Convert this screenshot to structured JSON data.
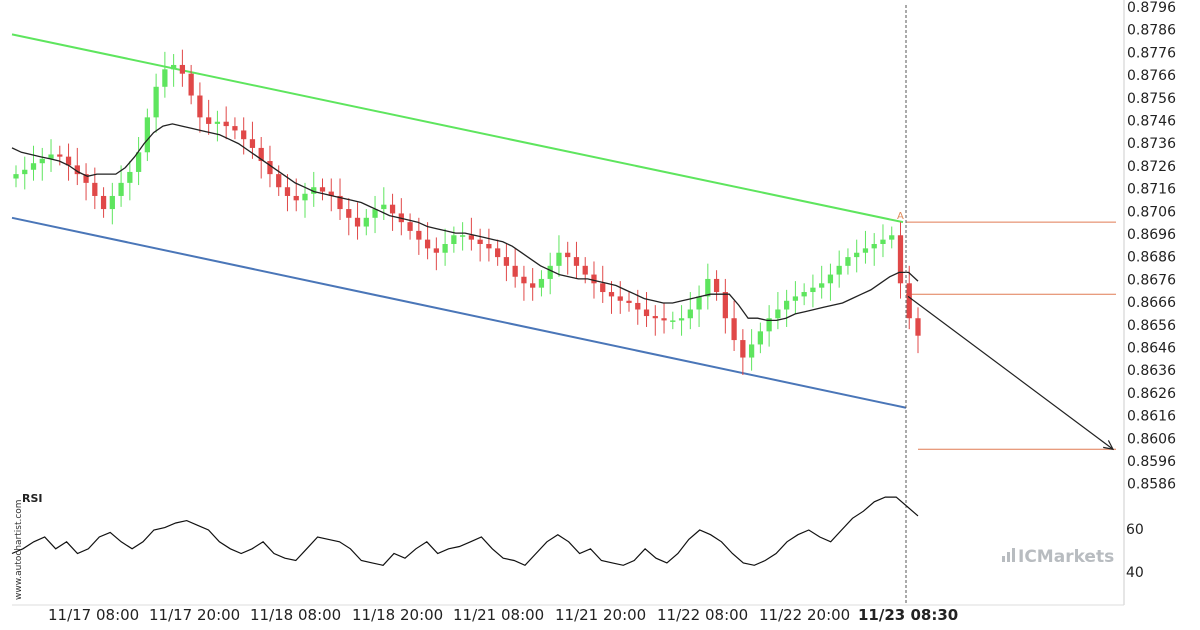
{
  "chart_data": {
    "type": "candlestick",
    "symbol": "",
    "price_axis": {
      "ticks": [
        "0.8796",
        "0.8786",
        "0.8776",
        "0.8766",
        "0.8756",
        "0.8746",
        "0.8736",
        "0.8726",
        "0.8716",
        "0.8706",
        "0.8696",
        "0.8686",
        "0.8676",
        "0.8666",
        "0.8656",
        "0.8646",
        "0.8636",
        "0.8626",
        "0.8616",
        "0.8606",
        "0.8596",
        "0.8586"
      ],
      "range": [
        0.8581,
        0.8799
      ]
    },
    "time_axis": {
      "labels": [
        "11/17 08:00",
        "11/17 20:00",
        "11/18 08:00",
        "11/18 20:00",
        "11/21 08:00",
        "11/21 20:00",
        "11/22 08:00",
        "11/22 20:00",
        "11/23 08:30"
      ],
      "highlight_label": "11/23 08:30"
    },
    "closes": [
      0.8722,
      0.8724,
      0.8727,
      0.8729,
      0.8731,
      0.873,
      0.8726,
      0.8722,
      0.8718,
      0.8712,
      0.8706,
      0.8712,
      0.8718,
      0.8723,
      0.8732,
      0.8748,
      0.8762,
      0.877,
      0.8772,
      0.8768,
      0.8758,
      0.8748,
      0.8745,
      0.8746,
      0.8744,
      0.8742,
      0.8738,
      0.8734,
      0.8728,
      0.8722,
      0.8716,
      0.8712,
      0.871,
      0.8713,
      0.8716,
      0.8714,
      0.8712,
      0.8706,
      0.8702,
      0.8698,
      0.8702,
      0.8706,
      0.8708,
      0.8704,
      0.87,
      0.8696,
      0.8692,
      0.8688,
      0.8686,
      0.869,
      0.8694,
      0.8694,
      0.8692,
      0.869,
      0.8688,
      0.8684,
      0.868,
      0.8675,
      0.8672,
      0.867,
      0.8674,
      0.868,
      0.8686,
      0.8684,
      0.868,
      0.8676,
      0.8672,
      0.8668,
      0.8666,
      0.8664,
      0.8663,
      0.866,
      0.8657,
      0.8656,
      0.8655,
      0.8655,
      0.8656,
      0.866,
      0.8666,
      0.8674,
      0.8668,
      0.8656,
      0.8646,
      0.8638,
      0.8644,
      0.865,
      0.8656,
      0.866,
      0.8664,
      0.8666,
      0.8668,
      0.867,
      0.8672,
      0.8676,
      0.868,
      0.8684,
      0.8686,
      0.8688,
      0.869,
      0.8692,
      0.8694,
      0.8672,
      0.8656,
      0.8648
    ],
    "moving_average": [
      0.8734,
      0.8732,
      0.8731,
      0.873,
      0.8729,
      0.8728,
      0.8726,
      0.8723,
      0.8721,
      0.8722,
      0.8722,
      0.8722,
      0.8725,
      0.873,
      0.8736,
      0.8741,
      0.8744,
      0.8745,
      0.8744,
      0.8743,
      0.8742,
      0.8741,
      0.874,
      0.8738,
      0.8736,
      0.8733,
      0.873,
      0.8727,
      0.8724,
      0.8721,
      0.8718,
      0.8716,
      0.8714,
      0.8713,
      0.8712,
      0.8711,
      0.871,
      0.8709,
      0.8707,
      0.8705,
      0.8703,
      0.8702,
      0.8701,
      0.87,
      0.8698,
      0.8697,
      0.8696,
      0.8695,
      0.8695,
      0.8694,
      0.8693,
      0.8692,
      0.8691,
      0.8689,
      0.8686,
      0.8683,
      0.868,
      0.8678,
      0.8676,
      0.8675,
      0.8674,
      0.8674,
      0.8673,
      0.8672,
      0.8671,
      0.8669,
      0.8667,
      0.8665,
      0.8664,
      0.8663,
      0.8663,
      0.8664,
      0.8665,
      0.8666,
      0.8667,
      0.8667,
      0.8667,
      0.8662,
      0.8656,
      0.8656,
      0.8655,
      0.8655,
      0.8656,
      0.8658,
      0.8659,
      0.866,
      0.8661,
      0.8662,
      0.8663,
      0.8665,
      0.8667,
      0.8669,
      0.8672,
      0.8675,
      0.8677,
      0.8677,
      0.8673
    ],
    "channel": {
      "upper": {
        "color": "#5ee55e",
        "from_price": 0.8786,
        "to_price": 0.87
      },
      "lower": {
        "color": "#4a76b8",
        "from_price": 0.8702,
        "to_price": 0.8615
      }
    },
    "levels": {
      "color": "#e07b53",
      "prices": [
        0.87,
        0.8667,
        0.8596
      ]
    },
    "projection": {
      "from_price": 0.8666,
      "to_price": 0.8596,
      "color": "#222222"
    },
    "pattern_point_label": "A",
    "rsi": {
      "title": "RSI",
      "ticks": [
        "60",
        "40"
      ],
      "values": [
        50,
        52,
        55,
        57,
        52,
        55,
        50,
        52,
        57,
        59,
        55,
        52,
        55,
        60,
        61,
        63,
        64,
        62,
        60,
        55,
        52,
        50,
        52,
        55,
        50,
        48,
        47,
        52,
        57,
        56,
        55,
        52,
        47,
        46,
        45,
        50,
        48,
        52,
        55,
        50,
        52,
        53,
        55,
        57,
        52,
        48,
        47,
        45,
        50,
        55,
        58,
        55,
        50,
        52,
        47,
        46,
        45,
        47,
        52,
        48,
        46,
        50,
        56,
        60,
        58,
        55,
        50,
        46,
        45,
        47,
        50,
        55,
        58,
        60,
        57,
        55,
        60,
        65,
        68,
        72,
        74,
        74,
        70,
        66
      ]
    },
    "colors": {
      "bull": "#5ee55e",
      "bear": "#e04848",
      "ma": "#222222",
      "dashed": "#555555"
    }
  },
  "watermark_text": "www.autochartist.com",
  "brand": {
    "text": "ICMarkets"
  }
}
